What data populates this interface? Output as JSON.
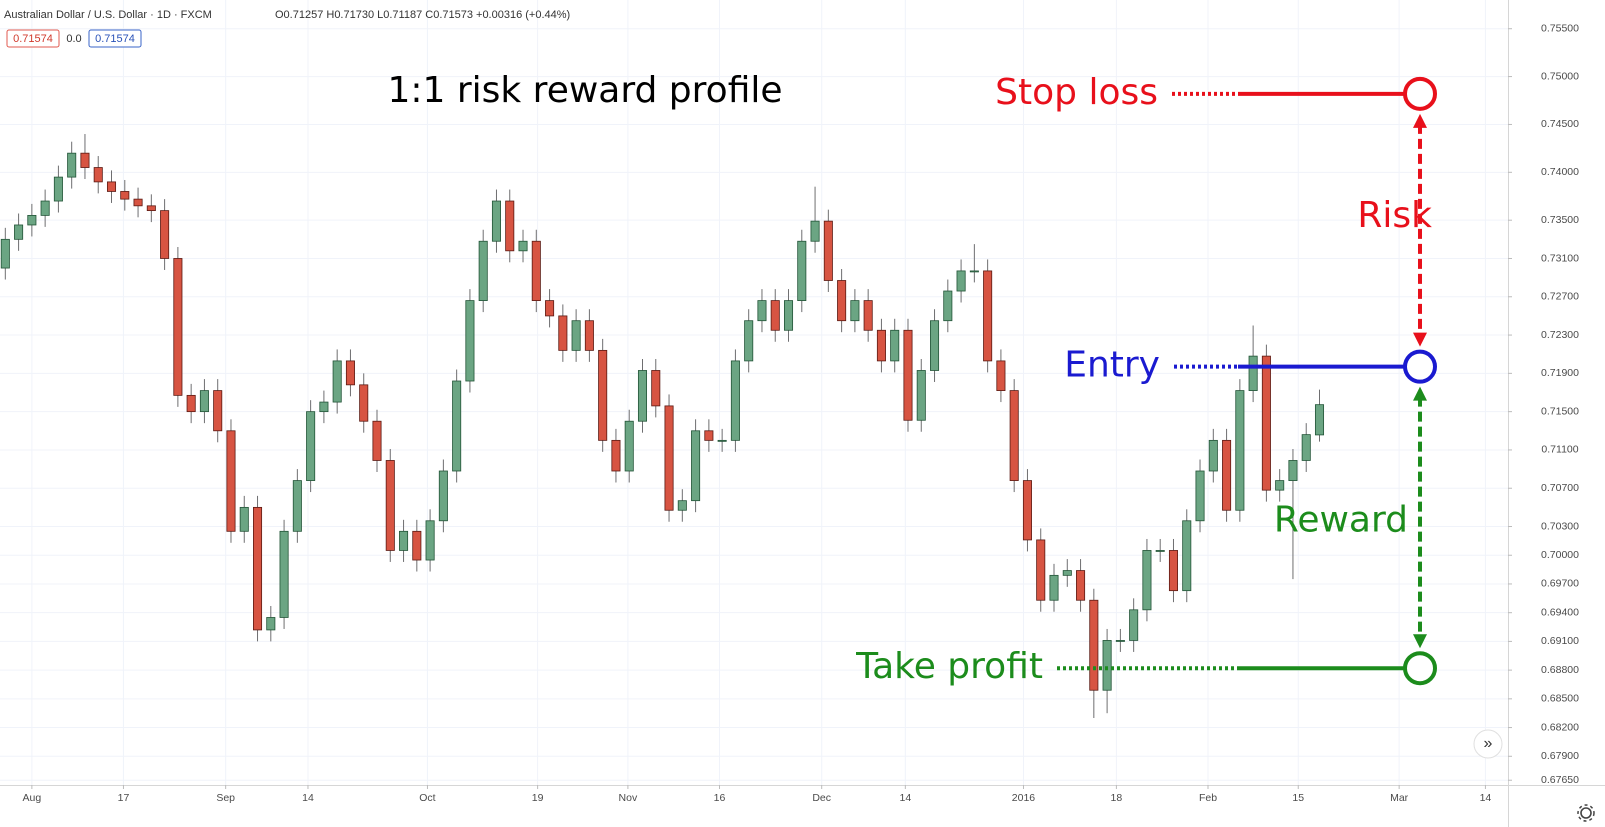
{
  "header": {
    "symbol": "Australian Dollar / U.S. Dollar · 1D · FXCM",
    "ohlc": "O0.71257 H0.71730 L0.71187 C0.71573 +0.00316 (+0.44%)",
    "bid": "0.71574",
    "spread": "0.0",
    "ask": "0.71574"
  },
  "chart_data": {
    "type": "candlestick",
    "title": "1:1 risk reward profile",
    "open": [
      0.73,
      0.733,
      0.7345,
      0.7355,
      0.737,
      0.7395,
      0.742,
      0.7405,
      0.739,
      0.738,
      0.7372,
      0.7365,
      0.736,
      0.731,
      0.7167,
      0.715,
      0.7172,
      0.713,
      0.7025,
      0.705,
      0.6922,
      0.6935,
      0.7025,
      0.7078,
      0.715,
      0.716,
      0.7203,
      0.7178,
      0.714,
      0.7099,
      0.7005,
      0.7025,
      0.6995,
      0.7036,
      0.7088,
      0.7182,
      0.7266,
      0.7328,
      0.737,
      0.7318,
      0.7328,
      0.7266,
      0.725,
      0.7214,
      0.7245,
      0.7214,
      0.712,
      0.7088,
      0.714,
      0.7193,
      0.7156,
      0.7047,
      0.7057,
      0.713,
      0.712,
      0.712,
      0.7203,
      0.7245,
      0.7266,
      0.7235,
      0.7266,
      0.7328,
      0.7349,
      0.7287,
      0.7245,
      0.7266,
      0.7235,
      0.7203,
      0.7235,
      0.7141,
      0.7193,
      0.7245,
      0.7276,
      0.7297,
      0.7297,
      0.7203,
      0.7172,
      0.7078,
      0.7016,
      0.6953,
      0.6979,
      0.6984,
      0.6953,
      0.6859,
      0.6911,
      0.6911,
      0.6943,
      0.7005,
      0.7005,
      0.6963,
      0.7036,
      0.7088,
      0.712,
      0.7047,
      0.7172,
      0.7208,
      0.7068,
      0.7078,
      0.7099,
      0.71257
    ],
    "high": [
      0.7342,
      0.7357,
      0.7367,
      0.7382,
      0.7407,
      0.7432,
      0.744,
      0.7417,
      0.7402,
      0.7392,
      0.7384,
      0.7377,
      0.7372,
      0.7322,
      0.7179,
      0.7184,
      0.7184,
      0.7142,
      0.7062,
      0.7062,
      0.6947,
      0.7037,
      0.709,
      0.7162,
      0.7172,
      0.7215,
      0.7215,
      0.719,
      0.7152,
      0.7111,
      0.7037,
      0.7037,
      0.7048,
      0.71,
      0.7194,
      0.7278,
      0.734,
      0.7382,
      0.7382,
      0.734,
      0.734,
      0.7278,
      0.7262,
      0.7257,
      0.7257,
      0.7226,
      0.7132,
      0.7152,
      0.7205,
      0.7205,
      0.7168,
      0.7069,
      0.7142,
      0.7142,
      0.7132,
      0.7215,
      0.7257,
      0.7278,
      0.7278,
      0.7278,
      0.734,
      0.7385,
      0.7361,
      0.7299,
      0.7278,
      0.7278,
      0.7247,
      0.7247,
      0.7247,
      0.7205,
      0.7257,
      0.7288,
      0.7309,
      0.7325,
      0.7309,
      0.7215,
      0.7184,
      0.709,
      0.7028,
      0.6991,
      0.6996,
      0.6996,
      0.6965,
      0.6923,
      0.6923,
      0.6955,
      0.7017,
      0.7017,
      0.7017,
      0.7048,
      0.71,
      0.7132,
      0.7132,
      0.7184,
      0.724,
      0.722,
      0.709,
      0.7111,
      0.7138,
      0.7173
    ],
    "low": [
      0.7288,
      0.7318,
      0.7333,
      0.7343,
      0.7358,
      0.7383,
      0.7393,
      0.7378,
      0.7368,
      0.736,
      0.7353,
      0.7348,
      0.7298,
      0.7155,
      0.7138,
      0.7138,
      0.7118,
      0.7013,
      0.7013,
      0.691,
      0.691,
      0.6923,
      0.7013,
      0.7066,
      0.7138,
      0.7148,
      0.7166,
      0.7128,
      0.7087,
      0.6993,
      0.6993,
      0.6983,
      0.6983,
      0.7024,
      0.7076,
      0.717,
      0.7254,
      0.7316,
      0.7306,
      0.7306,
      0.7254,
      0.7238,
      0.7202,
      0.7202,
      0.7202,
      0.7108,
      0.7076,
      0.7076,
      0.7128,
      0.7144,
      0.7035,
      0.7035,
      0.7045,
      0.7108,
      0.7108,
      0.7108,
      0.7191,
      0.7233,
      0.7223,
      0.7223,
      0.7254,
      0.7316,
      0.7275,
      0.7233,
      0.7233,
      0.7223,
      0.7191,
      0.7191,
      0.7129,
      0.7129,
      0.7181,
      0.7233,
      0.7264,
      0.7285,
      0.7191,
      0.716,
      0.7066,
      0.7004,
      0.6941,
      0.6941,
      0.6967,
      0.6941,
      0.683,
      0.6835,
      0.6899,
      0.6899,
      0.6931,
      0.6993,
      0.6951,
      0.6951,
      0.7024,
      0.7076,
      0.7035,
      0.7035,
      0.716,
      0.7056,
      0.7056,
      0.6975,
      0.7087,
      0.71187
    ],
    "close": [
      0.733,
      0.7345,
      0.7355,
      0.737,
      0.7395,
      0.742,
      0.7405,
      0.739,
      0.738,
      0.7372,
      0.7365,
      0.736,
      0.731,
      0.7167,
      0.715,
      0.7172,
      0.713,
      0.7025,
      0.705,
      0.6922,
      0.6935,
      0.7025,
      0.7078,
      0.715,
      0.716,
      0.7203,
      0.7178,
      0.714,
      0.7099,
      0.7005,
      0.7025,
      0.6995,
      0.7036,
      0.7088,
      0.7182,
      0.7266,
      0.7328,
      0.737,
      0.7318,
      0.7328,
      0.7266,
      0.725,
      0.7214,
      0.7245,
      0.7214,
      0.712,
      0.7088,
      0.714,
      0.7193,
      0.7156,
      0.7047,
      0.7057,
      0.713,
      0.712,
      0.712,
      0.7203,
      0.7245,
      0.7266,
      0.7235,
      0.7266,
      0.7328,
      0.7349,
      0.7287,
      0.7245,
      0.7266,
      0.7235,
      0.7203,
      0.7235,
      0.7141,
      0.7193,
      0.7245,
      0.7276,
      0.7297,
      0.7297,
      0.7203,
      0.7172,
      0.7078,
      0.7016,
      0.6953,
      0.6979,
      0.6984,
      0.6953,
      0.6859,
      0.6911,
      0.6911,
      0.6943,
      0.7005,
      0.7005,
      0.6963,
      0.7036,
      0.7088,
      0.712,
      0.7047,
      0.7172,
      0.7208,
      0.7068,
      0.7078,
      0.7099,
      0.7126,
      0.71573
    ],
    "up_color": "#6ba583",
    "down_color": "#d75442",
    "xlim": [
      -0.4,
      113.2
    ],
    "xticks": [
      {
        "value": 2,
        "label": "Aug"
      },
      {
        "value": 8.9,
        "label": "17"
      },
      {
        "value": 16.6,
        "label": "Sep"
      },
      {
        "value": 22.8,
        "label": "14"
      },
      {
        "value": 31.8,
        "label": "Oct"
      },
      {
        "value": 40.1,
        "label": "19"
      },
      {
        "value": 46.9,
        "label": "Nov"
      },
      {
        "value": 53.8,
        "label": "16"
      },
      {
        "value": 61.5,
        "label": "Dec"
      },
      {
        "value": 67.8,
        "label": "14"
      },
      {
        "value": 76.7,
        "label": "2016"
      },
      {
        "value": 83.7,
        "label": "18"
      },
      {
        "value": 90.6,
        "label": "Feb"
      },
      {
        "value": 97.4,
        "label": "15"
      },
      {
        "value": 105,
        "label": "Mar"
      },
      {
        "value": 111.5,
        "label": "14"
      }
    ],
    "ylim": [
      0.676,
      0.758
    ],
    "yticks": [
      {
        "value": 0.755,
        "label": "0.75500"
      },
      {
        "value": 0.75,
        "label": "0.75000"
      },
      {
        "value": 0.745,
        "label": "0.74500"
      },
      {
        "value": 0.74,
        "label": "0.74000"
      },
      {
        "value": 0.735,
        "label": "0.73500"
      },
      {
        "value": 0.731,
        "label": "0.73100"
      },
      {
        "value": 0.727,
        "label": "0.72700"
      },
      {
        "value": 0.723,
        "label": "0.72300"
      },
      {
        "value": 0.719,
        "label": "0.71900"
      },
      {
        "value": 0.715,
        "label": "0.71500"
      },
      {
        "value": 0.711,
        "label": "0.71100"
      },
      {
        "value": 0.707,
        "label": "0.70700"
      },
      {
        "value": 0.703,
        "label": "0.70300"
      },
      {
        "value": 0.7,
        "label": "0.70000"
      },
      {
        "value": 0.697,
        "label": "0.69700"
      },
      {
        "value": 0.694,
        "label": "0.69400"
      },
      {
        "value": 0.691,
        "label": "0.69100"
      },
      {
        "value": 0.688,
        "label": "0.68800"
      },
      {
        "value": 0.685,
        "label": "0.68500"
      },
      {
        "value": 0.682,
        "label": "0.68200"
      },
      {
        "value": 0.679,
        "label": "0.67900"
      },
      {
        "value": 0.6765,
        "label": "0.67650"
      }
    ],
    "grid": true,
    "levels": [
      {
        "name": "Stop loss",
        "value": 0.7482,
        "color": "#e8101b"
      },
      {
        "name": "Entry",
        "value": 0.7197,
        "color": "#1a1ad0"
      },
      {
        "name": "Take profit",
        "value": 0.6882,
        "color": "#1c8c1c"
      }
    ],
    "annotations": [
      {
        "text": "Risk",
        "color": "#e8101b"
      },
      {
        "text": "Reward",
        "color": "#1c8c1c"
      }
    ]
  }
}
